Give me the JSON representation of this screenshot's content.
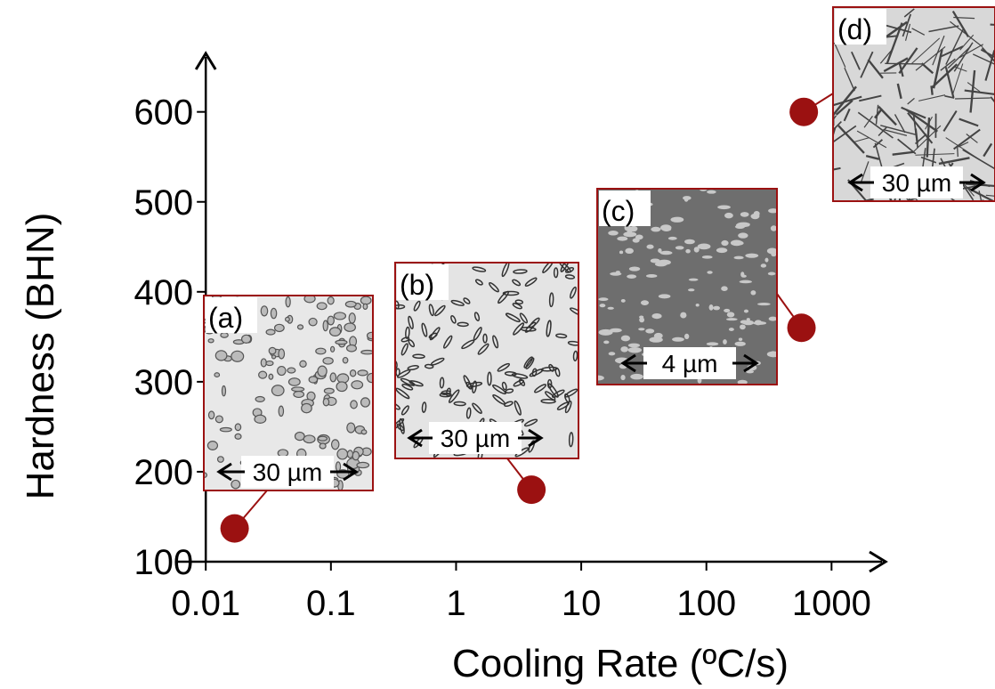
{
  "chart_data": {
    "type": "scatter",
    "x_label": "Cooling Rate (ºC/s)",
    "y_label": "Hardness (BHN)",
    "log_x": true,
    "xlim": [
      0.006,
      2700
    ],
    "ylim": [
      100,
      665
    ],
    "xticks": [
      0.01,
      0.1,
      1,
      10,
      100,
      1000
    ],
    "yticks": [
      100,
      200,
      300,
      400,
      500,
      600
    ],
    "color": "#9b1111",
    "x": [
      0.017,
      4,
      575,
      600
    ],
    "values": [
      137,
      180,
      360,
      600
    ],
    "annotations": [
      {
        "label": "(a)",
        "scale": "30 µm"
      },
      {
        "label": "(b)",
        "scale": "30 µm"
      },
      {
        "label": "(c)",
        "scale": "4 µm"
      },
      {
        "label": "(d)",
        "scale": "30 µm"
      }
    ]
  }
}
